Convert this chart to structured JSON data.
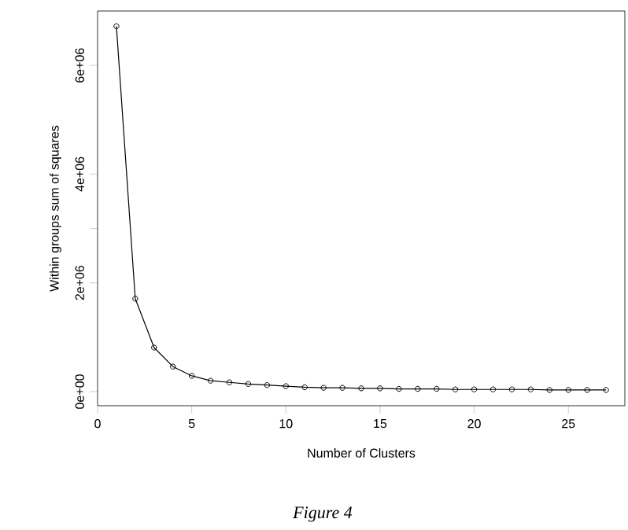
{
  "chart_data": {
    "type": "line",
    "xlabel": "Number of Clusters",
    "ylabel": "Within groups sum of squares",
    "annotations": [
      "Figure 4"
    ],
    "x": [
      1,
      2,
      3,
      4,
      5,
      6,
      7,
      8,
      9,
      10,
      11,
      12,
      13,
      14,
      15,
      16,
      17,
      18,
      19,
      20,
      21,
      22,
      23,
      24,
      25,
      26,
      27
    ],
    "series": [
      {
        "color": "#000000",
        "values": [
          6720000,
          1710000,
          810000,
          460000,
          290000,
          200000,
          170000,
          140000,
          120000,
          100000,
          80000,
          70000,
          70000,
          60000,
          60000,
          50000,
          50000,
          50000,
          40000,
          40000,
          40000,
          40000,
          40000,
          30000,
          30000,
          30000,
          30000
        ]
      }
    ],
    "xlim": [
      0,
      28
    ],
    "ylim": [
      -260000,
      7000000
    ],
    "xticks": [
      0,
      5,
      10,
      15,
      20,
      25
    ],
    "yticks": [
      {
        "value": 0,
        "label": "0e+00"
      },
      {
        "value": 2000000,
        "label": "2e+06"
      },
      {
        "value": 3000000,
        "label": null
      },
      {
        "value": 4000000,
        "label": "4e+06"
      },
      {
        "value": 6000000,
        "label": "6e+06"
      }
    ],
    "marker": "circle",
    "line_style": "solid",
    "grid": false
  }
}
